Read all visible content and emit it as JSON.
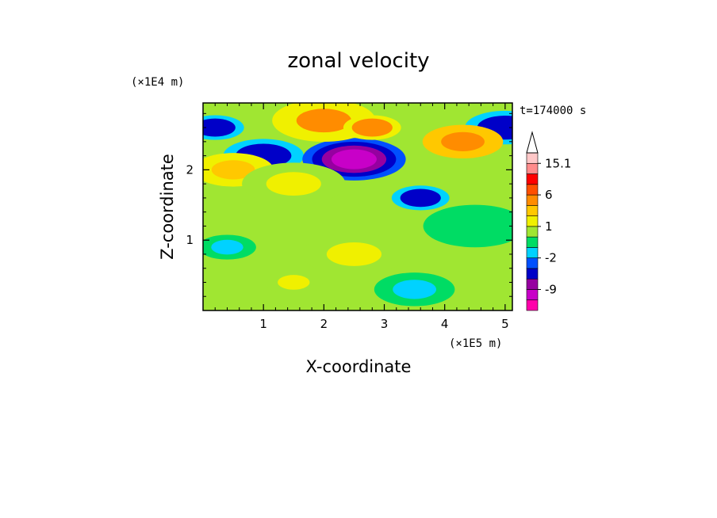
{
  "chart_data": {
    "type": "heatmap",
    "title": "zonal velocity",
    "xlabel": "X-coordinate",
    "ylabel": "Z-coordinate",
    "x_scale_label": "(×1E5 m)",
    "y_scale_label": "(×1E4 m)",
    "time_label": "t=174000 s",
    "xlim": [
      0,
      5.12
    ],
    "ylim": [
      0,
      2.95
    ],
    "x_ticks": [
      "1",
      "2",
      "3",
      "4",
      "5"
    ],
    "y_ticks": [
      "1",
      "2"
    ],
    "x_tick_values": [
      1,
      2,
      3,
      4,
      5
    ],
    "y_tick_values": [
      1,
      2
    ],
    "colorbar": {
      "levels": [
        -15,
        -12,
        -9,
        -6,
        -3,
        -2,
        -1,
        0,
        1,
        2,
        3,
        6,
        9,
        12,
        15.1
      ],
      "colors": [
        "#ff00aa",
        "#c800c8",
        "#9600a0",
        "#0000c8",
        "#0050ff",
        "#00d2ff",
        "#00dc64",
        "#a0e632",
        "#f0f000",
        "#ffc800",
        "#ff8c00",
        "#ff5000",
        "#ff0000",
        "#ff8c8c",
        "#ffc8c8"
      ],
      "labels": [
        {
          "text": "15.1",
          "value": 15.1
        },
        {
          "text": "6",
          "value": 6
        },
        {
          "text": "1",
          "value": 1
        },
        {
          "text": "-2",
          "value": -2
        },
        {
          "text": "-9",
          "value": -9
        }
      ],
      "extend": "max"
    },
    "field_background": "#a0e632",
    "features": [
      {
        "x": 0.2,
        "z": 2.6,
        "v": -6
      },
      {
        "x": 1.0,
        "z": 2.2,
        "v": -6
      },
      {
        "x": 2.5,
        "z": 2.15,
        "v": -12
      },
      {
        "x": 3.6,
        "z": 1.6,
        "v": -6
      },
      {
        "x": 5.0,
        "z": 2.6,
        "v": -6
      },
      {
        "x": 2.0,
        "z": 2.7,
        "v": 3
      },
      {
        "x": 2.8,
        "z": 2.6,
        "v": 5
      },
      {
        "x": 4.3,
        "z": 2.4,
        "v": 4
      },
      {
        "x": 2.5,
        "z": 0.8,
        "v": 1
      },
      {
        "x": 1.5,
        "z": 0.4,
        "v": 1
      },
      {
        "x": 0.5,
        "z": 2.0,
        "v": 2
      },
      {
        "x": 1.5,
        "z": 1.8,
        "v": 1
      },
      {
        "x": 0.4,
        "z": 0.9,
        "v": -2
      },
      {
        "x": 3.5,
        "z": 0.3,
        "v": -2
      },
      {
        "x": 4.5,
        "z": 1.2,
        "v": -1
      }
    ]
  }
}
